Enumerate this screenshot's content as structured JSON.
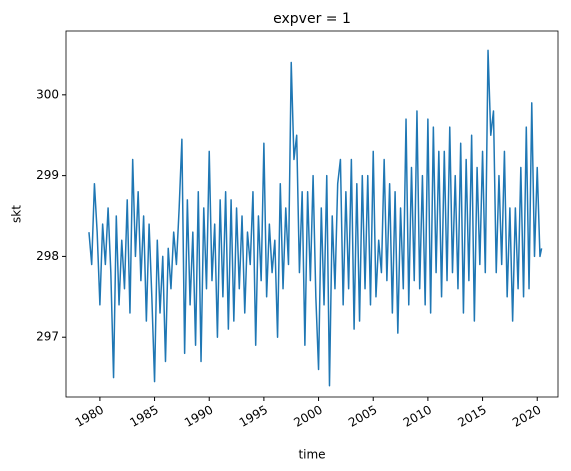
{
  "chart_data": {
    "type": "line",
    "title": "expver = 1",
    "x_label": "time",
    "y_label": "skt",
    "x": [
      1979,
      1979.25,
      1979.5,
      1979.75,
      1980,
      1980.25,
      1980.5,
      1980.75,
      1981,
      1981.25,
      1981.5,
      1981.75,
      1982,
      1982.25,
      1982.5,
      1982.75,
      1983,
      1983.25,
      1983.5,
      1983.75,
      1984,
      1984.25,
      1984.5,
      1984.75,
      1985,
      1985.25,
      1985.5,
      1985.75,
      1986,
      1986.25,
      1986.5,
      1986.75,
      1987,
      1987.25,
      1987.5,
      1987.75,
      1988,
      1988.25,
      1988.5,
      1988.75,
      1989,
      1989.25,
      1989.5,
      1989.75,
      1990,
      1990.25,
      1990.5,
      1990.75,
      1991,
      1991.25,
      1991.5,
      1991.75,
      1992,
      1992.25,
      1992.5,
      1992.75,
      1993,
      1993.25,
      1993.5,
      1993.75,
      1994,
      1994.25,
      1994.5,
      1994.75,
      1995,
      1995.25,
      1995.5,
      1995.75,
      1996,
      1996.25,
      1996.5,
      1996.75,
      1997,
      1997.25,
      1997.5,
      1997.75,
      1998,
      1998.25,
      1998.5,
      1998.75,
      1999,
      1999.25,
      1999.5,
      1999.75,
      2000,
      2000.25,
      2000.5,
      2000.75,
      2001,
      2001.25,
      2001.5,
      2001.75,
      2002,
      2002.25,
      2002.5,
      2002.75,
      2003,
      2003.25,
      2003.5,
      2003.75,
      2004,
      2004.25,
      2004.5,
      2004.75,
      2005,
      2005.25,
      2005.5,
      2005.75,
      2006,
      2006.25,
      2006.5,
      2006.75,
      2007,
      2007.25,
      2007.5,
      2007.75,
      2008,
      2008.25,
      2008.5,
      2008.75,
      2009,
      2009.25,
      2009.5,
      2009.75,
      2010,
      2010.25,
      2010.5,
      2010.75,
      2011,
      2011.25,
      2011.5,
      2011.75,
      2012,
      2012.25,
      2012.5,
      2012.75,
      2013,
      2013.25,
      2013.5,
      2013.75,
      2014,
      2014.25,
      2014.5,
      2014.75,
      2015,
      2015.25,
      2015.5,
      2015.75,
      2016,
      2016.25,
      2016.5,
      2016.75,
      2017,
      2017.25,
      2017.5,
      2017.75,
      2018,
      2018.25,
      2018.5,
      2018.75,
      2019,
      2019.25,
      2019.5,
      2019.75,
      2020,
      2020.25,
      2020.4
    ],
    "series": [
      {
        "name": "skt",
        "color": "#1f77b4",
        "values": [
          298.3,
          297.9,
          298.9,
          298.3,
          297.4,
          298.4,
          297.9,
          298.6,
          297.8,
          296.5,
          298.5,
          297.4,
          298.2,
          297.6,
          298.7,
          297.3,
          299.2,
          298.0,
          298.8,
          297.7,
          298.5,
          297.2,
          298.4,
          297.5,
          296.45,
          298.2,
          297.3,
          298.0,
          296.7,
          298.1,
          297.6,
          298.3,
          297.9,
          298.6,
          299.45,
          296.8,
          298.7,
          297.4,
          298.3,
          296.9,
          298.8,
          296.7,
          298.6,
          297.6,
          299.3,
          297.7,
          298.4,
          297.0,
          298.7,
          297.5,
          298.8,
          297.1,
          298.7,
          297.2,
          298.6,
          297.6,
          298.5,
          297.3,
          298.3,
          297.9,
          298.8,
          296.9,
          298.5,
          297.7,
          299.4,
          297.5,
          298.4,
          297.8,
          298.2,
          297.0,
          298.9,
          297.6,
          298.6,
          297.9,
          300.4,
          299.2,
          299.5,
          297.8,
          298.8,
          296.9,
          298.8,
          297.7,
          299.0,
          297.5,
          296.6,
          298.6,
          297.4,
          299.0,
          296.4,
          298.5,
          297.6,
          298.9,
          299.2,
          297.4,
          298.8,
          297.6,
          299.2,
          297.1,
          298.9,
          297.2,
          299.0,
          297.6,
          299.0,
          297.4,
          299.3,
          297.5,
          298.2,
          297.8,
          299.2,
          297.7,
          298.9,
          297.3,
          298.8,
          297.05,
          298.6,
          297.6,
          299.7,
          297.4,
          299.1,
          297.7,
          299.8,
          297.6,
          299.0,
          297.4,
          299.7,
          297.3,
          299.6,
          297.8,
          299.3,
          297.5,
          299.3,
          297.7,
          299.6,
          297.8,
          299.0,
          297.6,
          299.4,
          297.3,
          299.2,
          297.7,
          299.5,
          297.2,
          299.1,
          297.9,
          299.3,
          297.8,
          300.55,
          299.5,
          299.8,
          297.8,
          299.0,
          297.9,
          299.3,
          297.5,
          298.6,
          297.2,
          298.6,
          297.6,
          299.1,
          297.5,
          299.6,
          297.6,
          299.9,
          298.0,
          299.1,
          298.0,
          298.1
        ]
      }
    ],
    "xlim": [
      1976.9,
      2021.9
    ],
    "xticks": [
      1980,
      1985,
      1990,
      1995,
      2000,
      2005,
      2010,
      2015,
      2020
    ],
    "ylim": [
      296.26,
      300.79
    ],
    "yticks": [
      297,
      298,
      299,
      300
    ]
  }
}
